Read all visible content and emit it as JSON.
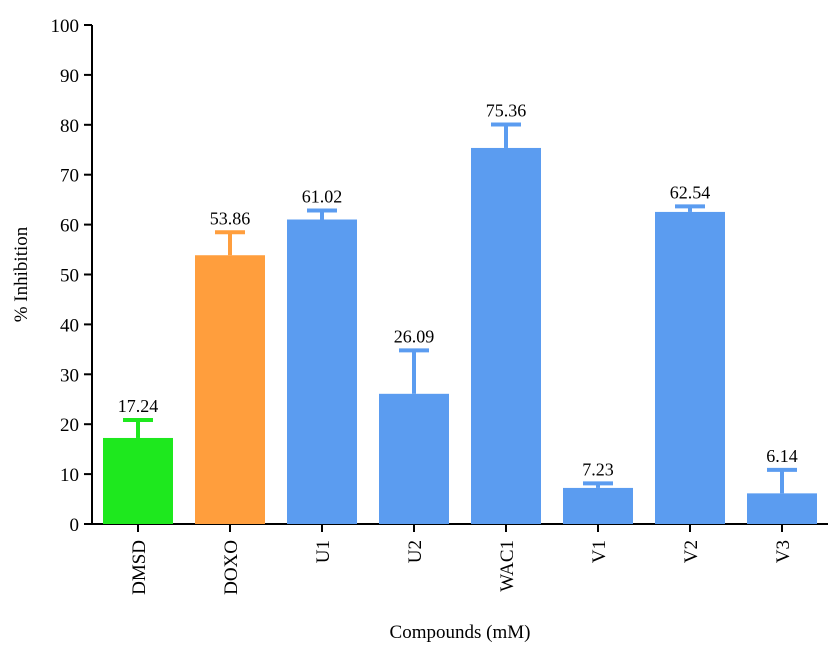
{
  "chart_data": {
    "type": "bar",
    "categories": [
      "DMSD",
      "DOXO",
      "U1",
      "U2",
      "WAC1",
      "V1",
      "V2",
      "V3"
    ],
    "values": [
      17.24,
      53.86,
      61.02,
      26.09,
      75.36,
      7.23,
      62.54,
      6.14
    ],
    "error_plus": [
      3.6,
      4.6,
      1.8,
      8.7,
      4.7,
      0.9,
      1.1,
      4.7
    ],
    "value_labels": [
      "17.24",
      "53.86",
      "61.02",
      "26.09",
      "75.36",
      "7.23",
      "62.54",
      "6.14"
    ],
    "bar_colors": [
      "#1ee81e",
      "#ff9e3d",
      "#5b9cf0",
      "#5b9cf0",
      "#5b9cf0",
      "#5b9cf0",
      "#5b9cf0",
      "#5b9cf0"
    ],
    "error_bar_colors": [
      "#1ee81e",
      "#ff9e3d",
      "#5b9cf0",
      "#5b9cf0",
      "#5b9cf0",
      "#5b9cf0",
      "#5b9cf0",
      "#5b9cf0"
    ],
    "xlabel": "Compounds (mM)",
    "ylabel": "% Inhibition",
    "ylim": [
      0,
      100
    ],
    "yticks": [
      0,
      10,
      20,
      30,
      40,
      50,
      60,
      70,
      80,
      90,
      100
    ],
    "grid": false
  }
}
